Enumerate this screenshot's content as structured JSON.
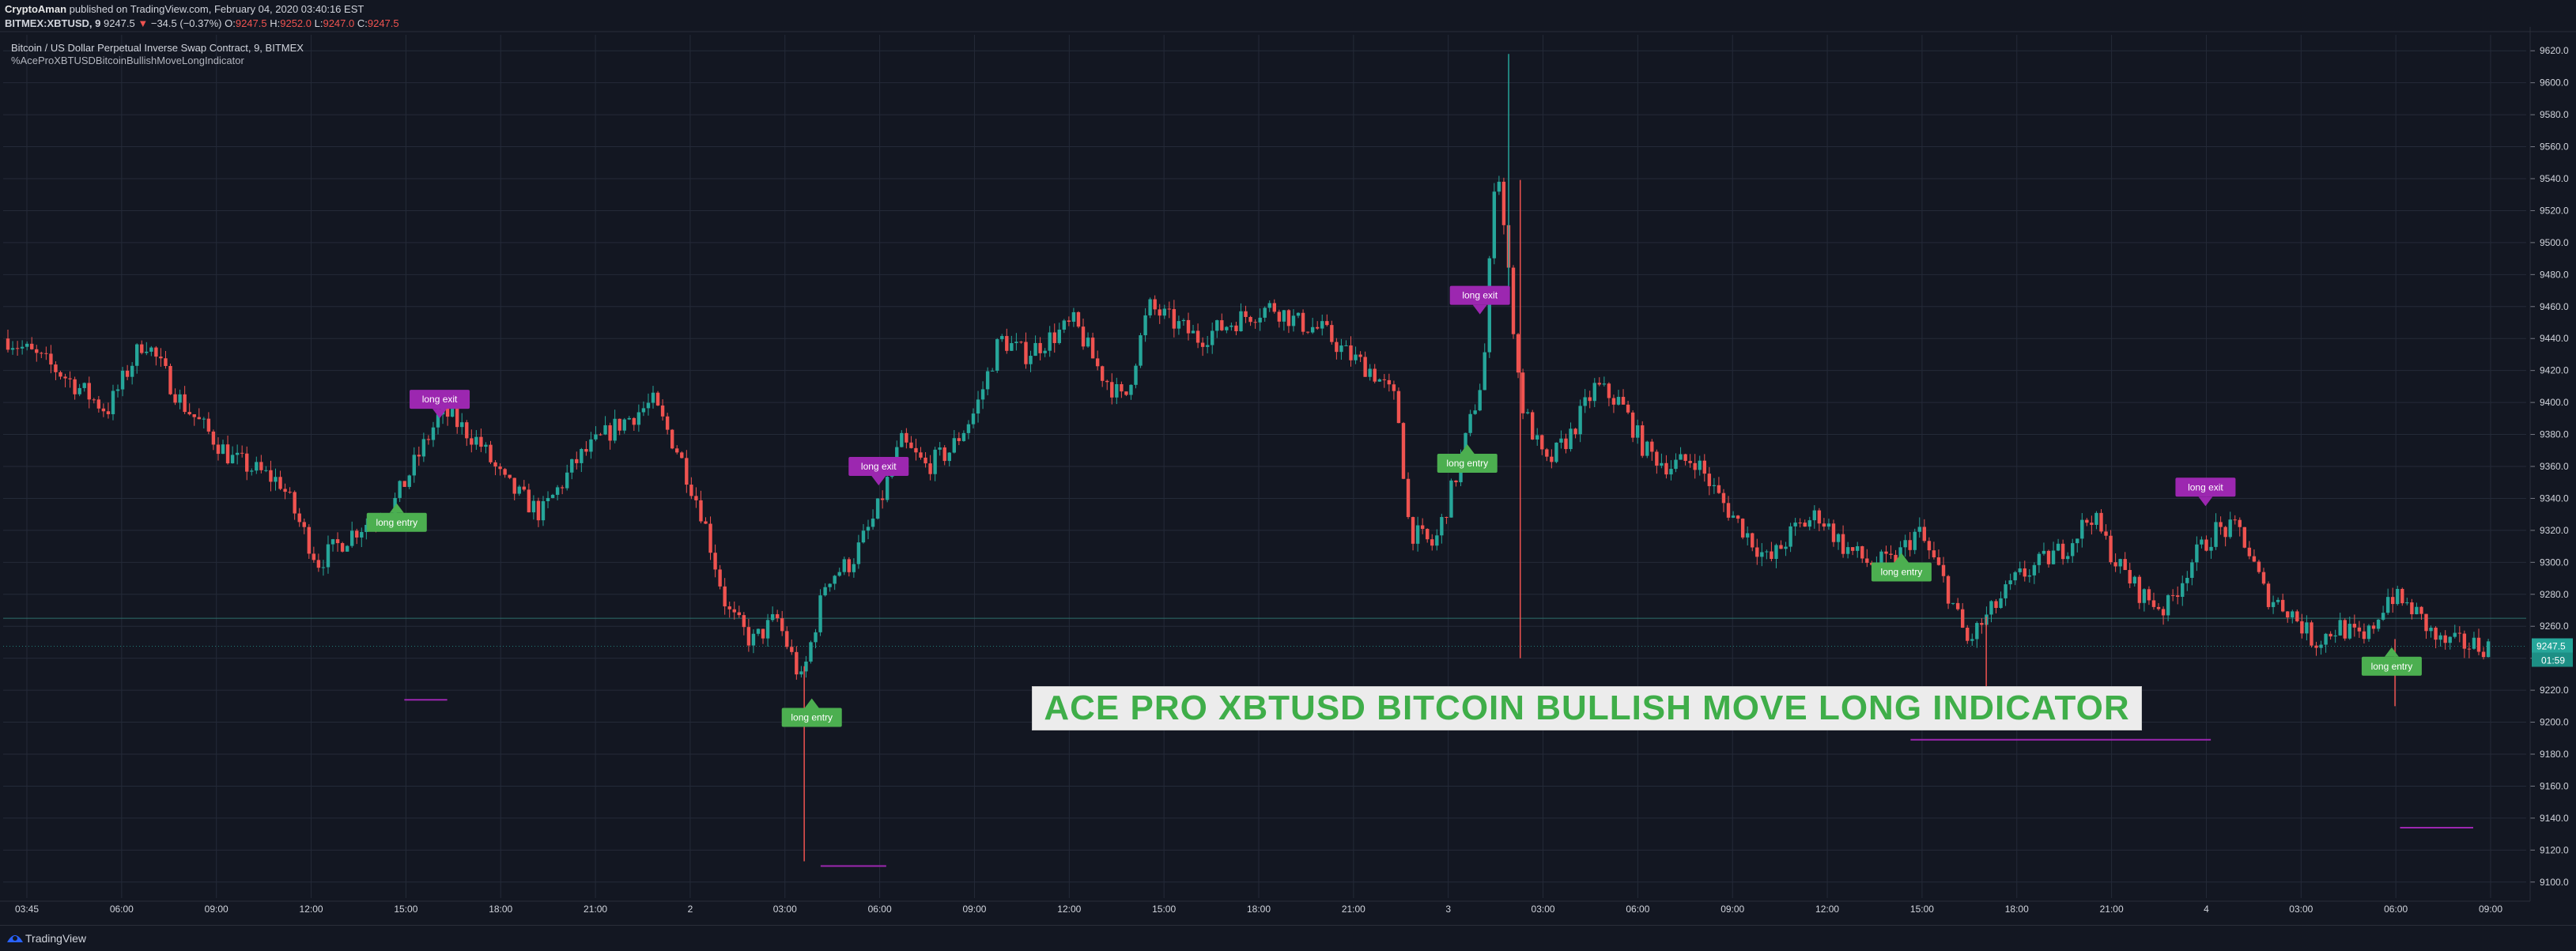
{
  "header": {
    "author": "CryptoAman",
    "published_text": "published on TradingView.com, February 04, 2020 03:40:16 EST"
  },
  "ohlc": {
    "symbol": "BITMEX:XBTUSD, 9",
    "last": "9247.5",
    "arrow": "▼",
    "change": "−34.5 (−0.37%)",
    "o_label": "O:",
    "o": "9247.5",
    "h_label": "H:",
    "h": "9252.0",
    "l_label": "L:",
    "l": "9247.0",
    "c_label": "C:",
    "c": "9247.5"
  },
  "chart_title": "Bitcoin / US Dollar Perpetual Inverse Swap Contract, 9, BITMEX",
  "study_title": "%AceProXBTUSDBitcoinBullishMoveLongIndicator",
  "banner_text": "ACE PRO XBTUSD BITCOIN BULLISH MOVE LONG INDICATOR",
  "footer": {
    "brand": "TradingView"
  },
  "colors": {
    "background": "#131722",
    "grid": "#242a38",
    "up": "#26a69a",
    "down": "#ef5350",
    "long_entry": "#4caf50",
    "long_exit": "#9c27b0",
    "banner_bg": "#ececec",
    "banner_text": "#3fae49"
  },
  "chart_data": {
    "type": "candlestick",
    "ylim": [
      9090,
      9630
    ],
    "y_ticks": [
      "9100.0",
      "9120.0",
      "9140.0",
      "9160.0",
      "9180.0",
      "9200.0",
      "9220.0",
      "9240.0",
      "9260.0",
      "9280.0",
      "9300.0",
      "9320.0",
      "9340.0",
      "9360.0",
      "9380.0",
      "9400.0",
      "9420.0",
      "9440.0",
      "9460.0",
      "9480.0",
      "9500.0",
      "9520.0",
      "9540.0",
      "9560.0",
      "9580.0",
      "9600.0",
      "9620.0"
    ],
    "x_ticks": [
      "03:45",
      "06:00",
      "09:00",
      "12:00",
      "15:00",
      "18:00",
      "21:00",
      "2",
      "03:00",
      "06:00",
      "09:00",
      "12:00",
      "15:00",
      "18:00",
      "21:00",
      "3",
      "03:00",
      "06:00",
      "09:00",
      "12:00",
      "15:00",
      "18:00",
      "21:00",
      "4",
      "03:00",
      "06:00",
      "09:00"
    ],
    "last_price_label": "9247.5",
    "countdown_label": "01:59",
    "last_price": 9247.5,
    "price_path": [
      [
        0,
        9440
      ],
      [
        0.02,
        9420
      ],
      [
        0.04,
        9395
      ],
      [
        0.055,
        9440
      ],
      [
        0.07,
        9400
      ],
      [
        0.09,
        9365
      ],
      [
        0.11,
        9350
      ],
      [
        0.125,
        9300
      ],
      [
        0.14,
        9320
      ],
      [
        0.155,
        9335
      ],
      [
        0.165,
        9365
      ],
      [
        0.175,
        9395
      ],
      [
        0.19,
        9375
      ],
      [
        0.2,
        9350
      ],
      [
        0.215,
        9330
      ],
      [
        0.23,
        9365
      ],
      [
        0.245,
        9385
      ],
      [
        0.26,
        9400
      ],
      [
        0.27,
        9370
      ],
      [
        0.28,
        9330
      ],
      [
        0.29,
        9270
      ],
      [
        0.3,
        9250
      ],
      [
        0.31,
        9265
      ],
      [
        0.32,
        9225
      ],
      [
        0.33,
        9290
      ],
      [
        0.34,
        9300
      ],
      [
        0.35,
        9330
      ],
      [
        0.36,
        9375
      ],
      [
        0.37,
        9360
      ],
      [
        0.38,
        9370
      ],
      [
        0.39,
        9395
      ],
      [
        0.4,
        9440
      ],
      [
        0.41,
        9430
      ],
      [
        0.42,
        9440
      ],
      [
        0.43,
        9450
      ],
      [
        0.44,
        9420
      ],
      [
        0.45,
        9400
      ],
      [
        0.46,
        9460
      ],
      [
        0.47,
        9450
      ],
      [
        0.48,
        9440
      ],
      [
        0.5,
        9455
      ],
      [
        0.51,
        9460
      ],
      [
        0.52,
        9450
      ],
      [
        0.53,
        9445
      ],
      [
        0.54,
        9430
      ],
      [
        0.55,
        9420
      ],
      [
        0.56,
        9400
      ],
      [
        0.565,
        9320
      ],
      [
        0.575,
        9310
      ],
      [
        0.585,
        9360
      ],
      [
        0.595,
        9420
      ],
      [
        0.6,
        9560
      ],
      [
        0.605,
        9480
      ],
      [
        0.61,
        9400
      ],
      [
        0.62,
        9360
      ],
      [
        0.63,
        9380
      ],
      [
        0.64,
        9410
      ],
      [
        0.65,
        9400
      ],
      [
        0.66,
        9370
      ],
      [
        0.67,
        9360
      ],
      [
        0.68,
        9365
      ],
      [
        0.69,
        9340
      ],
      [
        0.7,
        9320
      ],
      [
        0.71,
        9300
      ],
      [
        0.72,
        9320
      ],
      [
        0.73,
        9330
      ],
      [
        0.74,
        9310
      ],
      [
        0.75,
        9300
      ],
      [
        0.76,
        9300
      ],
      [
        0.77,
        9320
      ],
      [
        0.78,
        9290
      ],
      [
        0.79,
        9250
      ],
      [
        0.8,
        9270
      ],
      [
        0.81,
        9290
      ],
      [
        0.82,
        9300
      ],
      [
        0.83,
        9310
      ],
      [
        0.84,
        9330
      ],
      [
        0.85,
        9300
      ],
      [
        0.86,
        9280
      ],
      [
        0.87,
        9270
      ],
      [
        0.88,
        9300
      ],
      [
        0.89,
        9320
      ],
      [
        0.9,
        9320
      ],
      [
        0.91,
        9280
      ],
      [
        0.92,
        9270
      ],
      [
        0.93,
        9250
      ],
      [
        0.94,
        9260
      ],
      [
        0.95,
        9250
      ],
      [
        0.96,
        9280
      ],
      [
        0.97,
        9270
      ],
      [
        0.98,
        9250
      ],
      [
        1.0,
        9247.5
      ]
    ],
    "spikes": [
      {
        "t": 0.3175,
        "low": 9113
      },
      {
        "t": 0.5967,
        "high": 9618
      },
      {
        "t": 0.6013,
        "low": 9240
      },
      {
        "t": 0.786,
        "low": 9218
      },
      {
        "t": 0.948,
        "low": 9210
      }
    ],
    "markers": [
      {
        "label": "long entry",
        "kind": "entry",
        "t": 0.156,
        "price": 9325
      },
      {
        "label": "long exit",
        "kind": "exit",
        "t": 0.173,
        "price": 9402
      },
      {
        "label": "long entry",
        "kind": "entry",
        "t": 0.3205,
        "price": 9203
      },
      {
        "label": "long exit",
        "kind": "exit",
        "t": 0.347,
        "price": 9360
      },
      {
        "label": "long exit",
        "kind": "exit",
        "t": 0.5853,
        "price": 9467
      },
      {
        "label": "long entry",
        "kind": "entry",
        "t": 0.5803,
        "price": 9362
      },
      {
        "label": "long entry",
        "kind": "entry",
        "t": 0.7524,
        "price": 9294
      },
      {
        "label": "long exit",
        "kind": "exit",
        "t": 0.8729,
        "price": 9347
      },
      {
        "label": "long entry",
        "kind": "entry",
        "t": 0.9467,
        "price": 9235
      }
    ],
    "level_lines": [
      {
        "t0": 0.159,
        "t1": 0.176,
        "price": 9214
      },
      {
        "t0": 0.324,
        "t1": 0.35,
        "price": 9110
      },
      {
        "t0": 0.756,
        "t1": 0.875,
        "price": 9189
      },
      {
        "t0": 0.95,
        "t1": 0.979,
        "price": 9134
      }
    ],
    "horizontal_line_price": 9265
  }
}
